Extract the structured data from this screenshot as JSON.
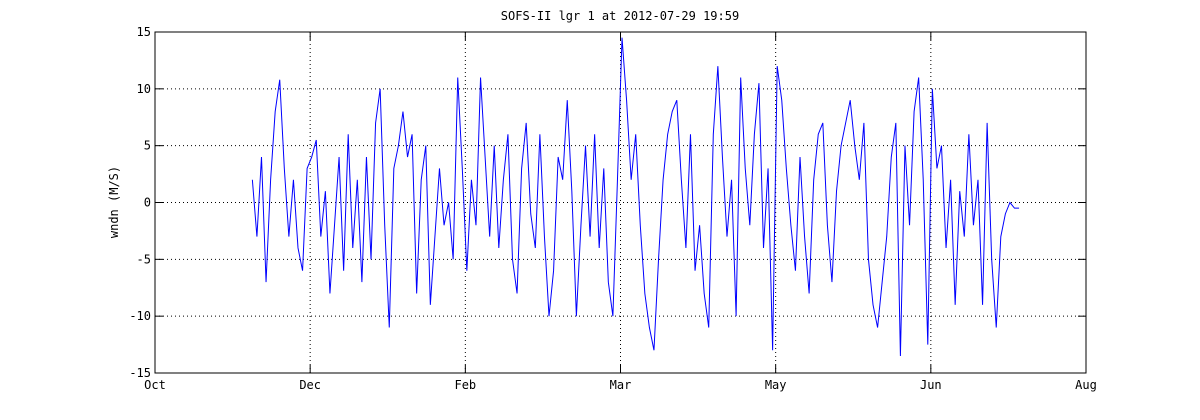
{
  "chart_data": {
    "type": "line",
    "title": "SOFS-II lgr 1 at 2012-07-29 19:59",
    "ylabel": "wndn (M/S)",
    "color": "#0000ff",
    "grid": true,
    "xlim": [
      0,
      306
    ],
    "xticks": [
      {
        "value": 0,
        "label": "Oct"
      },
      {
        "value": 51,
        "label": "Dec"
      },
      {
        "value": 102,
        "label": "Feb"
      },
      {
        "value": 153,
        "label": "Mar"
      },
      {
        "value": 204,
        "label": "May"
      },
      {
        "value": 255,
        "label": "Jun"
      },
      {
        "value": 306,
        "label": "Aug"
      }
    ],
    "ylim": [
      -15,
      15
    ],
    "yticks": [
      -15,
      -10,
      -5,
      0,
      5,
      10,
      15
    ],
    "x": [
      32,
      33.5,
      35,
      36.5,
      38,
      39.5,
      41,
      42.5,
      44,
      45.5,
      47,
      48.5,
      50,
      51.5,
      53,
      54.5,
      56,
      57.5,
      59,
      60.5,
      62,
      63.5,
      65,
      66.5,
      68,
      69.5,
      71,
      72.5,
      74,
      75.5,
      77,
      78.5,
      80,
      81.5,
      83,
      84.5,
      86,
      87.5,
      89,
      90.5,
      92,
      93.5,
      95,
      96.5,
      98,
      99.5,
      101,
      102.5,
      104,
      105.5,
      107,
      108.5,
      110,
      111.5,
      113,
      114.5,
      116,
      117.5,
      119,
      120.5,
      122,
      123.5,
      125,
      126.5,
      128,
      129.5,
      131,
      132.5,
      134,
      135.5,
      137,
      138.5,
      140,
      141.5,
      143,
      144.5,
      146,
      147.5,
      149,
      150.5,
      152,
      153.5,
      155,
      156.5,
      158,
      159.5,
      161,
      162.5,
      164,
      165.5,
      167,
      168.5,
      170,
      171.5,
      173,
      174.5,
      176,
      177.5,
      179,
      180.5,
      182,
      183.5,
      185,
      186.5,
      188,
      189.5,
      191,
      192.5,
      194,
      195.5,
      197,
      198.5,
      200,
      201.5,
      203,
      204.5,
      206,
      207.5,
      209,
      210.5,
      212,
      213.5,
      215,
      216.5,
      218,
      219.5,
      221,
      222.5,
      224,
      225.5,
      227,
      228.5,
      230,
      231.5,
      233,
      234.5,
      236,
      237.5,
      239,
      240.5,
      242,
      243.5,
      245,
      246.5,
      248,
      249.5,
      251,
      252.5,
      254,
      255.5,
      257,
      258.5,
      260,
      261.5,
      263,
      264.5,
      266,
      267.5,
      269,
      270.5,
      272,
      273.5,
      275,
      276.5,
      278,
      279.5,
      281,
      282.5,
      284
    ],
    "values": [
      2,
      -3,
      4,
      -7,
      2,
      8,
      10.8,
      3,
      -3,
      2,
      -4,
      -6,
      3,
      4,
      5.5,
      -3,
      1,
      -8,
      -2,
      4,
      -6,
      6,
      -4,
      2,
      -7,
      4,
      -5,
      7,
      10,
      -2,
      -11,
      3,
      5,
      8,
      4,
      6,
      -8,
      2,
      5,
      -9,
      -3,
      3,
      -2,
      0,
      -5,
      11,
      3,
      -6,
      2,
      -2,
      11,
      4,
      -3,
      5,
      -4,
      2,
      6,
      -5,
      -8,
      3,
      7,
      -1,
      -4,
      6,
      -3,
      -10,
      -6,
      4,
      2,
      9,
      1,
      -10,
      -2,
      5,
      -3,
      6,
      -4,
      3,
      -7,
      -10,
      2,
      14.5,
      9,
      2,
      6,
      -2,
      -8,
      -11,
      -13,
      -5,
      2,
      6,
      8,
      9,
      2,
      -4,
      6,
      -6,
      -2,
      -8,
      -11,
      6,
      12,
      4,
      -3,
      2,
      -10,
      11,
      3,
      -2,
      6,
      10.5,
      -4,
      3,
      -13,
      12,
      9,
      3,
      -2,
      -6,
      4,
      -3,
      -8,
      2,
      6,
      7,
      -2,
      -7,
      1,
      5,
      7,
      9,
      5,
      2,
      7,
      -5,
      -9,
      -11,
      -7,
      -3,
      4,
      7,
      -13.5,
      5,
      -2,
      8,
      11,
      2,
      -12.5,
      10,
      3,
      5,
      -4,
      2,
      -9,
      1,
      -3,
      6,
      -2,
      2,
      -9,
      7,
      -5,
      -11,
      -3,
      -1,
      0,
      -0.5,
      -0.5
    ]
  }
}
